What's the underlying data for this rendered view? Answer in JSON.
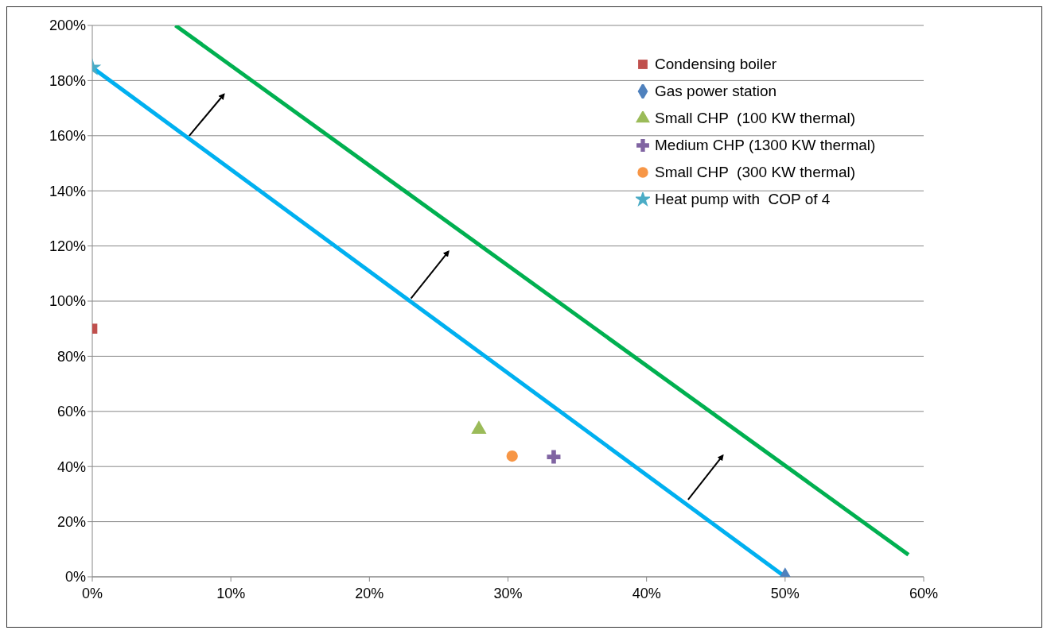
{
  "chart_data": {
    "type": "scatter",
    "series": [
      {
        "type": "line",
        "color": "#00b0f0",
        "x": [
          0,
          50
        ],
        "values": [
          184.7,
          0
        ]
      },
      {
        "type": "line",
        "color": "#00b050",
        "x": [
          6,
          58.9
        ],
        "values": [
          200,
          8
        ]
      },
      {
        "name": "Condensing boiler",
        "color": "#c0504d",
        "marker": "square",
        "x": [
          0
        ],
        "values": [
          90
        ]
      },
      {
        "name": "Gas power station",
        "color": "#4f81bd",
        "marker": "diamond",
        "x": [
          50
        ],
        "values": [
          0
        ]
      },
      {
        "name": "Small CHP  (100 KW thermal)",
        "color": "#9bbb59",
        "marker": "triangle",
        "x": [
          27.9
        ],
        "values": [
          53.5
        ]
      },
      {
        "name": "Medium CHP (1300 KW thermal)",
        "color": "#8064a2",
        "marker": "cross",
        "x": [
          33.3
        ],
        "values": [
          43.5
        ]
      },
      {
        "name": "Small CHP  (300 KW thermal)",
        "color": "#f79646",
        "marker": "circle",
        "x": [
          30.3
        ],
        "values": [
          43.8
        ]
      },
      {
        "name": "Heat pump with  COP of 4",
        "color": "#4bacc6",
        "marker": "star",
        "x": [
          0
        ],
        "values": [
          184.7
        ]
      }
    ],
    "xlim": [
      0,
      60
    ],
    "xticks": [
      {
        "value": 0,
        "label": "0%"
      },
      {
        "value": 10,
        "label": "10%"
      },
      {
        "value": 20,
        "label": "20%"
      },
      {
        "value": 30,
        "label": "30%"
      },
      {
        "value": 40,
        "label": "40%"
      },
      {
        "value": 50,
        "label": "50%"
      },
      {
        "value": 60,
        "label": "60%"
      }
    ],
    "ylim": [
      0,
      200
    ],
    "yticks": [
      {
        "value": 0,
        "label": "0%"
      },
      {
        "value": 20,
        "label": "20%"
      },
      {
        "value": 40,
        "label": "40%"
      },
      {
        "value": 60,
        "label": "60%"
      },
      {
        "value": 80,
        "label": "80%"
      },
      {
        "value": 100,
        "label": "100%"
      },
      {
        "value": 120,
        "label": "120%"
      },
      {
        "value": 140,
        "label": "140%"
      },
      {
        "value": 160,
        "label": "160%"
      },
      {
        "value": 180,
        "label": "180%"
      },
      {
        "value": 200,
        "label": "200%"
      }
    ],
    "grid": "y",
    "legend": "top right",
    "line_style": "solid"
  }
}
